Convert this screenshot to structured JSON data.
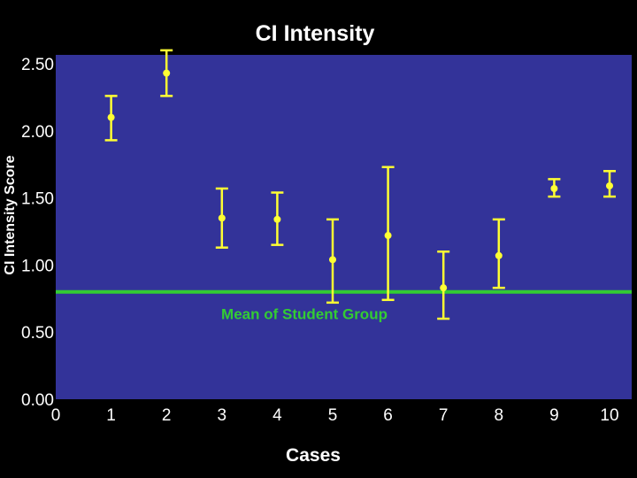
{
  "chart_data": {
    "type": "scatter",
    "title": "CI Intensity",
    "xlabel": "Cases",
    "ylabel": "CI Intensity Score",
    "xlim": [
      0,
      10
    ],
    "ylim": [
      0,
      2.5
    ],
    "x_ticks": [
      "0",
      "1",
      "2",
      "3",
      "4",
      "5",
      "6",
      "7",
      "8",
      "9",
      "10"
    ],
    "y_ticks": [
      "0.00",
      "0.50",
      "1.00",
      "1.50",
      "2.00",
      "2.50"
    ],
    "grid": false,
    "series": [
      {
        "points": [
          {
            "x": 1,
            "y": 2.1,
            "low": 1.93,
            "high": 2.26
          },
          {
            "x": 2,
            "y": 2.43,
            "low": 2.26,
            "high": 2.6
          },
          {
            "x": 3,
            "y": 1.35,
            "low": 1.13,
            "high": 1.57
          },
          {
            "x": 4,
            "y": 1.34,
            "low": 1.15,
            "high": 1.54
          },
          {
            "x": 5,
            "y": 1.04,
            "low": 0.72,
            "high": 1.34
          },
          {
            "x": 6,
            "y": 1.22,
            "low": 0.74,
            "high": 1.73
          },
          {
            "x": 7,
            "y": 0.83,
            "low": 0.6,
            "high": 1.1
          },
          {
            "x": 8,
            "y": 1.07,
            "low": 0.83,
            "high": 1.34
          },
          {
            "x": 9,
            "y": 1.57,
            "low": 1.51,
            "high": 1.64
          },
          {
            "x": 10,
            "y": 1.59,
            "low": 1.51,
            "high": 1.7
          }
        ]
      }
    ],
    "reference_line": {
      "y": 0.8,
      "label": "Mean of Student Group"
    },
    "colors": {
      "background": "#000000",
      "plot_area": "#333399",
      "points": "#ffff33",
      "reference_line": "#33cc33",
      "text": "#ffffff"
    }
  }
}
